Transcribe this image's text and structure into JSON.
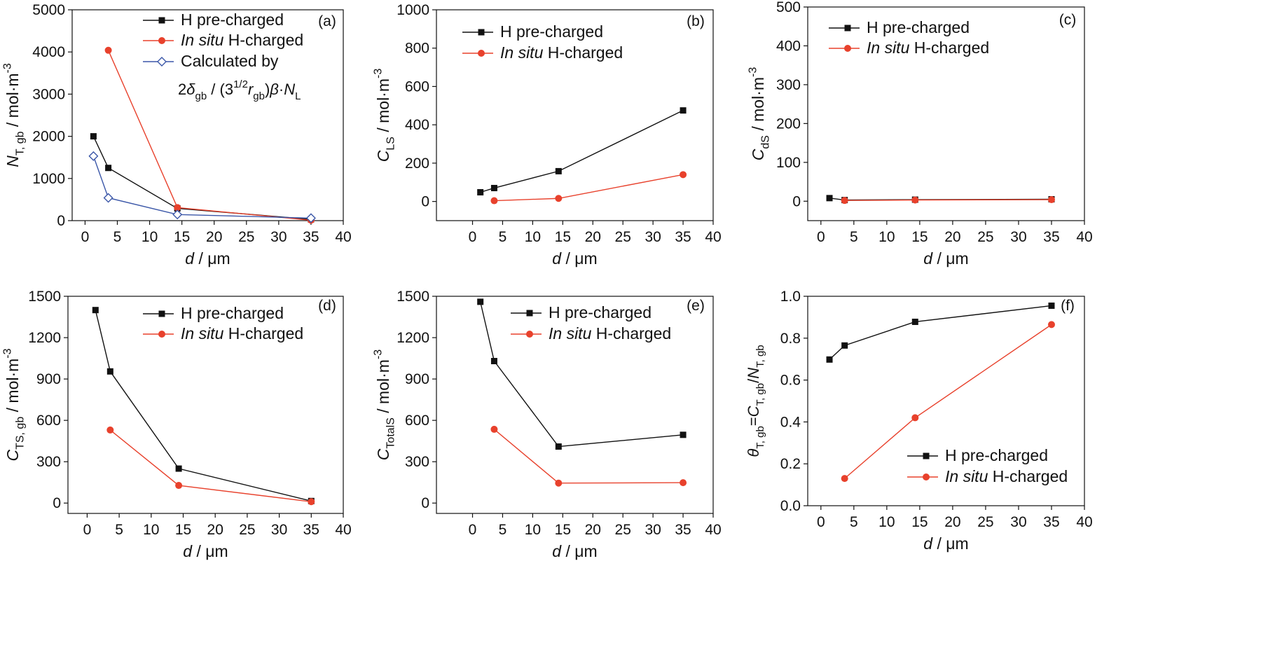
{
  "colors": {
    "black": "#111111",
    "red": "#e8412c",
    "blue": "#3b57a8"
  },
  "legend_texts": {
    "h_pre": "H pre-charged",
    "in_situ_italic": "In situ",
    "h_charged": " H-charged",
    "calculated": "Calculated by",
    "formula": {
      "p1": "2",
      "delta": "δ",
      "sub_gb": "gb",
      "p2": " / (3",
      "sup": "1/2",
      "r": "r",
      "p3": ")",
      "beta": "β",
      "dot": "·",
      "N": "N",
      "sub_L": "L"
    }
  },
  "xaxis": {
    "d": "d",
    "unit": " / μm"
  },
  "ylabels": {
    "a": {
      "sym": "N",
      "sub": "T, gb",
      "unit": " / mol·m",
      "sup": "-3"
    },
    "b": {
      "sym": "C",
      "sub": "LS",
      "unit": " / mol·m",
      "sup": "-3"
    },
    "c": {
      "sym": "C",
      "sub": "dS",
      "unit": " / mol·m",
      "sup": "-3"
    },
    "d": {
      "sym": "C",
      "sub": "TS, gb",
      "unit": " / mol·m",
      "sup": "-3"
    },
    "e": {
      "sym": "C",
      "sub": "TotalS",
      "unit": " / mol·m",
      "sup": "-3"
    },
    "f": {
      "theta": "θ",
      "sub1": "T, gb",
      "eq": "=",
      "C": "C",
      "sub2": "T, gb",
      "slash": "/",
      "N": "N",
      "sub3": "T, gb"
    }
  },
  "chart_data": [
    {
      "id": "a",
      "type": "line",
      "panel_label": "(a)",
      "xlim": [
        -2,
        40
      ],
      "ylim": [
        0,
        5000
      ],
      "xticks": [
        0,
        5,
        10,
        15,
        20,
        25,
        30,
        35,
        40
      ],
      "yticks": [
        0,
        1000,
        2000,
        3000,
        4000,
        5000
      ],
      "series": [
        {
          "name": "H pre-charged",
          "x": [
            1.3,
            3.6,
            14.3,
            35
          ],
          "y": [
            2000,
            1250,
            290,
            30
          ]
        },
        {
          "name": "In situ H-charged",
          "x": [
            3.6,
            14.3,
            35
          ],
          "y": [
            4040,
            310,
            10
          ]
        },
        {
          "name": "Calculated by 2δgb / (3^1/2 rgb)β·NL",
          "x": [
            1.3,
            3.6,
            14.3,
            35
          ],
          "y": [
            1530,
            540,
            145,
            60
          ]
        }
      ]
    },
    {
      "id": "b",
      "type": "line",
      "panel_label": "(b)",
      "xlim": [
        -6,
        40
      ],
      "ylim": [
        -100,
        1000
      ],
      "xticks": [
        0,
        5,
        10,
        15,
        20,
        25,
        30,
        35,
        40
      ],
      "yticks": [
        0,
        200,
        400,
        600,
        800,
        1000
      ],
      "series": [
        {
          "name": "H pre-charged",
          "x": [
            1.3,
            3.6,
            14.3,
            35
          ],
          "y": [
            48,
            70,
            158,
            475
          ]
        },
        {
          "name": "In situ H-charged",
          "x": [
            3.6,
            14.3,
            35
          ],
          "y": [
            4,
            16,
            140
          ]
        }
      ]
    },
    {
      "id": "c",
      "type": "line",
      "panel_label": "(c)",
      "xlim": [
        -2,
        40
      ],
      "ylim": [
        -50,
        500
      ],
      "xticks": [
        0,
        5,
        10,
        15,
        20,
        25,
        30,
        35,
        40
      ],
      "yticks": [
        0,
        100,
        200,
        300,
        400,
        500
      ],
      "series": [
        {
          "name": "H pre-charged",
          "x": [
            1.3,
            3.6,
            14.3,
            35
          ],
          "y": [
            8,
            3,
            4,
            5
          ]
        },
        {
          "name": "In situ H-charged",
          "x": [
            3.6,
            14.3,
            35
          ],
          "y": [
            2,
            3,
            4
          ]
        }
      ]
    },
    {
      "id": "d",
      "type": "line",
      "panel_label": "(d)",
      "xlim": [
        -3,
        40
      ],
      "ylim": [
        -75,
        1500
      ],
      "xticks": [
        0,
        5,
        10,
        15,
        20,
        25,
        30,
        35,
        40
      ],
      "yticks": [
        0,
        300,
        600,
        900,
        1200,
        1500
      ],
      "series": [
        {
          "name": "H pre-charged",
          "x": [
            1.3,
            3.6,
            14.3,
            35
          ],
          "y": [
            1400,
            955,
            250,
            15
          ]
        },
        {
          "name": "In situ H-charged",
          "x": [
            3.6,
            14.3,
            35
          ],
          "y": [
            530,
            128,
            10
          ]
        }
      ]
    },
    {
      "id": "e",
      "type": "line",
      "panel_label": "(e)",
      "xlim": [
        -6,
        40
      ],
      "ylim": [
        -75,
        1500
      ],
      "xticks": [
        0,
        5,
        10,
        15,
        20,
        25,
        30,
        35,
        40
      ],
      "yticks": [
        0,
        300,
        600,
        900,
        1200,
        1500
      ],
      "series": [
        {
          "name": "H pre-charged",
          "x": [
            1.3,
            3.6,
            14.3,
            35
          ],
          "y": [
            1460,
            1030,
            410,
            495
          ]
        },
        {
          "name": "In situ H-charged",
          "x": [
            3.6,
            14.3,
            35
          ],
          "y": [
            535,
            145,
            148
          ]
        }
      ]
    },
    {
      "id": "f",
      "type": "line",
      "panel_label": "(f)",
      "xlim": [
        -2,
        40
      ],
      "ylim": [
        0,
        1.0
      ],
      "xticks": [
        0,
        5,
        10,
        15,
        20,
        25,
        30,
        35,
        40
      ],
      "yticks": [
        0.0,
        0.2,
        0.4,
        0.6,
        0.8,
        1.0
      ],
      "series": [
        {
          "name": "H pre-charged",
          "x": [
            1.3,
            3.6,
            14.3,
            35
          ],
          "y": [
            0.698,
            0.765,
            0.878,
            0.955
          ]
        },
        {
          "name": "In situ H-charged",
          "x": [
            3.6,
            14.3,
            35
          ],
          "y": [
            0.13,
            0.42,
            0.865
          ]
        }
      ]
    }
  ]
}
